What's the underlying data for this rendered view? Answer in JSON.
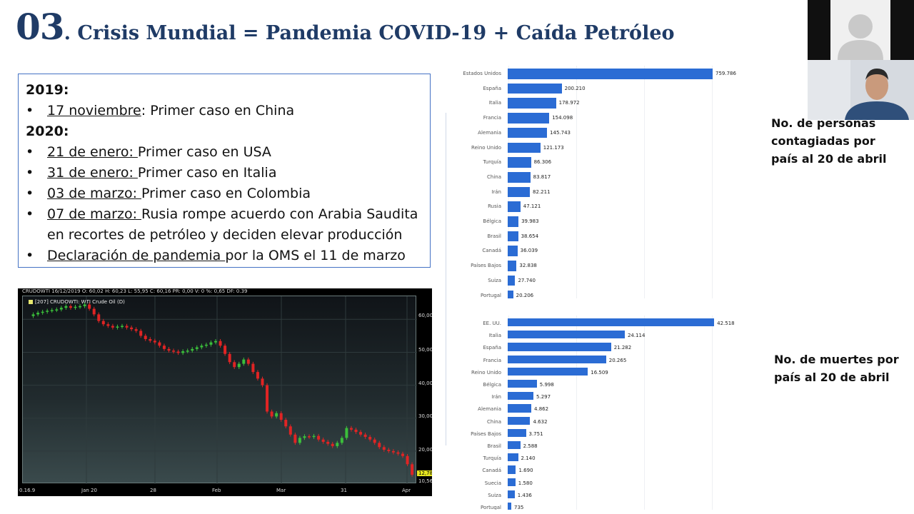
{
  "title": {
    "number": "03",
    "text": ". Crisis Mundial = Pandemia COVID-19 + Caída Petróleo"
  },
  "timeline": {
    "year1": "2019:",
    "y1_items": [
      {
        "date": "17 noviembre",
        "rest": ": Primer caso en China"
      }
    ],
    "year2": "2020:",
    "y2_items": [
      {
        "date": "21 de enero: ",
        "rest": "Primer caso en USA"
      },
      {
        "date": "31 de enero: ",
        "rest": "Primer caso en Italia"
      },
      {
        "date": "03 de marzo: ",
        "rest": " Primer caso en Colombia"
      },
      {
        "date": "07 de marzo: ",
        "rest": "Rusia rompe acuerdo con Arabia Saudita en recortes de petróleo y deciden elevar producción"
      },
      {
        "date": "Declaración de pandemia ",
        "rest": "por la OMS el 11 de marzo"
      }
    ]
  },
  "stock_chart": {
    "info_bar": "CRUDOWTI  16/12/2019  O: 60,02  H: 60,23  L: 55,95  C: 60,16  PR: 0,00  V: 0  %: 0,65 DF: 0.39",
    "legend": "[207] CRUDOWTI: WTI Crude Oil    (D)",
    "y_ticks": [
      "60,00",
      "50,00",
      "40,00",
      "30,00",
      "20,00"
    ],
    "x_ticks": [
      "Jan 20",
      "28",
      "Feb",
      "Mar",
      "31",
      "Apr"
    ],
    "x_first": "0.16.9",
    "last_price": "12,78",
    "last_price2": "10,56"
  },
  "chart_data": [
    {
      "type": "bar",
      "orientation": "horizontal",
      "categories": [
        "Estados Unidos",
        "España",
        "Italia",
        "Francia",
        "Alemania",
        "Reino Unido",
        "Turquía",
        "China",
        "Irán",
        "Rusia",
        "Bélgica",
        "Brasil",
        "Canadá",
        "Países Bajos",
        "Suiza",
        "Portugal"
      ],
      "values": [
        759786,
        200210,
        178972,
        154098,
        145743,
        121173,
        86306,
        83817,
        82211,
        47121,
        39983,
        38654,
        36039,
        32838,
        27740,
        20206
      ],
      "value_labels": [
        "759.786",
        "200.210",
        "178.972",
        "154.098",
        "145.743",
        "121.173",
        "86.306",
        "83.817",
        "82.211",
        "47.121",
        "39.983",
        "38.654",
        "36.039",
        "32.838",
        "27.740",
        "20.206"
      ],
      "color": "#2b6cd4",
      "xlim": [
        0,
        900000
      ]
    },
    {
      "type": "bar",
      "orientation": "horizontal",
      "categories": [
        "EE. UU.",
        "Italia",
        "España",
        "Francia",
        "Reino Unido",
        "Bélgica",
        "Irán",
        "Alemania",
        "China",
        "Países Bajos",
        "Brasil",
        "Turquía",
        "Canadá",
        "Suecia",
        "Suiza",
        "Portugal"
      ],
      "values": [
        42518,
        24114,
        21282,
        20265,
        16509,
        5998,
        5297,
        4862,
        4632,
        3751,
        2588,
        2140,
        1690,
        1580,
        1436,
        735
      ],
      "value_labels": [
        "42.518",
        "24.114",
        "21.282",
        "20.265",
        "16.509",
        "5.998",
        "5.297",
        "4.862",
        "4.632",
        "3.751",
        "2.588",
        "2.140",
        "1.690",
        "1.580",
        "1.436",
        "735"
      ],
      "color": "#2b6cd4",
      "xlim": [
        0,
        50000
      ]
    }
  ],
  "side_labels": {
    "cases": "No. de personas contagiadas por país al 20 de abril",
    "deaths": "No. de muertes por país al 20 de abril"
  }
}
